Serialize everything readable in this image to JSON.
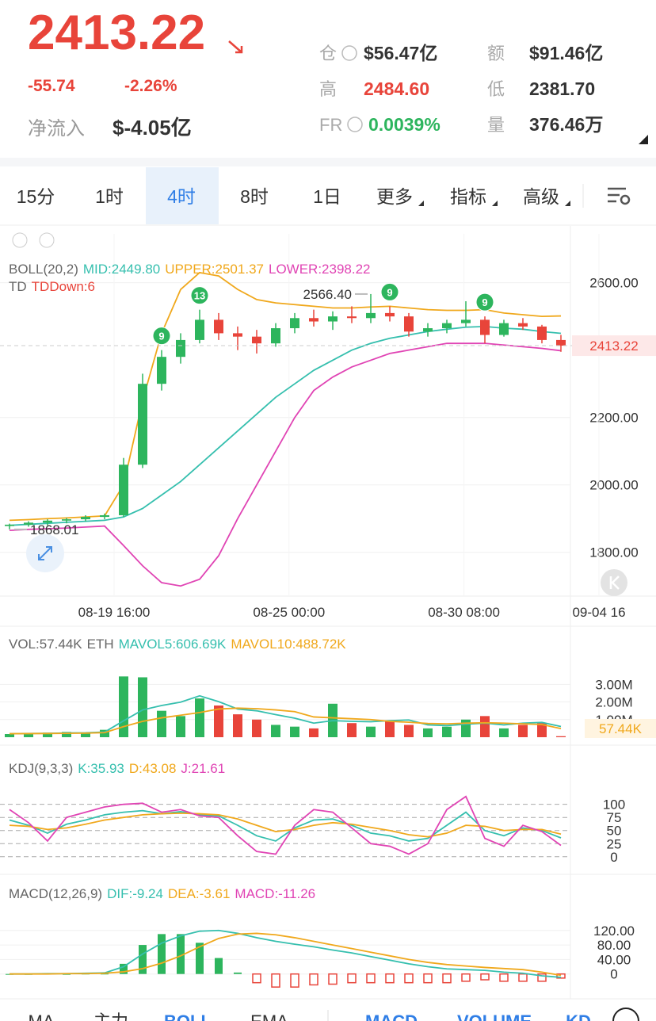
{
  "header": {
    "price": "2413.22",
    "change": "-55.74",
    "change_pct": "-2.26%",
    "net_inflow_label": "净流入",
    "net_inflow": "$-4.05亿",
    "stats": [
      {
        "label": "仓",
        "value": "$56.47亿"
      },
      {
        "label": "额",
        "value": "$91.46亿"
      },
      {
        "label": "高",
        "value": "2484.60"
      },
      {
        "label": "低",
        "value": "2381.70"
      },
      {
        "label": "FR",
        "value": "0.0039%"
      },
      {
        "label": "量",
        "value": "376.46万"
      }
    ]
  },
  "tabs": {
    "items": [
      "15分",
      "1时",
      "4时",
      "8时",
      "1日",
      "更多",
      "指标",
      "高级"
    ],
    "selected": 2
  },
  "chart_data": [
    {
      "type": "candlestick",
      "title": "BOLL(20,2)",
      "td_title": "TD",
      "td_value": "TDDown:6",
      "td_markers": [
        "9",
        "13",
        "9",
        "9"
      ],
      "annotations": [
        "2566.40",
        "1868.01"
      ],
      "open": [
        1878,
        1882,
        1888,
        1894,
        1898,
        1905,
        1910,
        2060,
        2300,
        2380,
        2430,
        2490,
        2450,
        2440,
        2420,
        2465,
        2495,
        2485,
        2500,
        2495,
        2510,
        2500,
        2455,
        2465,
        2480,
        2490,
        2445,
        2480,
        2470,
        2430
      ],
      "high": [
        1885,
        1892,
        1898,
        1902,
        1910,
        1915,
        2080,
        2330,
        2400,
        2450,
        2520,
        2510,
        2470,
        2460,
        2480,
        2510,
        2520,
        2515,
        2530,
        2566.4,
        2530,
        2510,
        2480,
        2490,
        2545,
        2500,
        2490,
        2495,
        2475,
        2445
      ],
      "low": [
        1868.01,
        1876,
        1880,
        1886,
        1892,
        1898,
        1905,
        2050,
        2280,
        2360,
        2420,
        2430,
        2400,
        2390,
        2410,
        2450,
        2470,
        2460,
        2480,
        2480,
        2485,
        2440,
        2440,
        2450,
        2470,
        2420,
        2440,
        2460,
        2420,
        2395
      ],
      "close": [
        1882,
        1888,
        1894,
        1898,
        1905,
        1910,
        2060,
        2300,
        2380,
        2430,
        2490,
        2450,
        2440,
        2420,
        2465,
        2495,
        2485,
        2500,
        2495,
        2510,
        2500,
        2455,
        2465,
        2480,
        2490,
        2445,
        2480,
        2470,
        2430,
        2413.22
      ],
      "series": [
        {
          "name": "MID:2449.80",
          "color": "#35bfae",
          "values": [
            1880,
            1883,
            1886,
            1889,
            1892,
            1895,
            1905,
            1930,
            1970,
            2010,
            2060,
            2110,
            2160,
            2210,
            2260,
            2300,
            2340,
            2370,
            2400,
            2420,
            2435,
            2445,
            2455,
            2462,
            2468,
            2470,
            2465,
            2462,
            2455,
            2449.8
          ]
        },
        {
          "name": "UPPER:2501.37",
          "color": "#f0a81c",
          "values": [
            1895,
            1897,
            1900,
            1902,
            1905,
            1908,
            2000,
            2250,
            2450,
            2580,
            2630,
            2620,
            2580,
            2550,
            2540,
            2535,
            2530,
            2525,
            2525,
            2528,
            2530,
            2525,
            2520,
            2518,
            2518,
            2520,
            2510,
            2505,
            2500,
            2501.37
          ]
        },
        {
          "name": "LOWER:2398.22",
          "color": "#e044b4",
          "values": [
            1865,
            1868,
            1870,
            1872,
            1875,
            1878,
            1820,
            1760,
            1710,
            1700,
            1720,
            1790,
            1900,
            2000,
            2100,
            2200,
            2280,
            2320,
            2350,
            2370,
            2390,
            2400,
            2410,
            2420,
            2420,
            2420,
            2415,
            2410,
            2405,
            2398.22
          ]
        }
      ],
      "up_color": "#2db55d",
      "down_color": "#e8443a",
      "xticks": [
        {
          "value": 5.5,
          "label": "08-19 16:00"
        },
        {
          "value": 14.7,
          "label": "08-25 00:00"
        },
        {
          "value": 23.9,
          "label": "08-30 08:00"
        },
        {
          "value": 31,
          "label": "09-04 16"
        }
      ],
      "ylim": [
        1670,
        2745
      ],
      "yticks": [
        {
          "value": 1800,
          "label": "1800.00"
        },
        {
          "value": 2000,
          "label": "2000.00"
        },
        {
          "value": 2200,
          "label": "2200.00"
        },
        {
          "value": 2600,
          "label": "2600.00"
        }
      ]
    },
    {
      "type": "bar",
      "title": "VOL:57.44K",
      "unit": "ETH",
      "last_value_label": "57.44K",
      "values": [
        180000,
        220000,
        260000,
        300000,
        240000,
        420000,
        3450000,
        3400000,
        1500000,
        1200000,
        2200000,
        1800000,
        1300000,
        1000000,
        700000,
        600000,
        500000,
        1900000,
        800000,
        600000,
        900000,
        700000,
        500000,
        600000,
        1000000,
        1200000,
        500000,
        700000,
        800000,
        57440
      ],
      "series": [
        {
          "name": "MAVOL5:606.69K",
          "color": "#35bfae",
          "values": [
            200000,
            210000,
            220000,
            240000,
            250000,
            290000,
            930000,
            1550000,
            1800000,
            1990000,
            2350000,
            2020000,
            1600000,
            1500000,
            1280000,
            1080000,
            800000,
            940000,
            900000,
            880000,
            940000,
            980000,
            700000,
            660000,
            740000,
            800000,
            700000,
            800000,
            840000,
            606690
          ]
        },
        {
          "name": "MAVOL10:488.72K",
          "color": "#f0a81c",
          "values": [
            200000,
            205000,
            210000,
            220000,
            230000,
            260000,
            600000,
            900000,
            1100000,
            1250000,
            1400000,
            1600000,
            1650000,
            1620000,
            1550000,
            1450000,
            1150000,
            1100000,
            1050000,
            1000000,
            900000,
            850000,
            780000,
            760000,
            800000,
            820000,
            800000,
            760000,
            720000,
            488720
          ]
        }
      ],
      "ylim": [
        0,
        4500000
      ],
      "yticks": [
        {
          "value": 1000000,
          "label": "1.00M"
        },
        {
          "value": 2000000,
          "label": "2.00M"
        },
        {
          "value": 3000000,
          "label": "3.00M"
        }
      ]
    },
    {
      "type": "line",
      "title": "KDJ(9,3,3)",
      "series": [
        {
          "name": "K:35.93",
          "color": "#35bfae",
          "values": [
            70,
            60,
            45,
            62,
            70,
            80,
            85,
            88,
            82,
            86,
            80,
            78,
            60,
            40,
            30,
            55,
            70,
            72,
            60,
            45,
            40,
            30,
            35,
            60,
            85,
            50,
            40,
            55,
            50,
            35.93
          ]
        },
        {
          "name": "D:43.08",
          "color": "#f0a81c",
          "values": [
            60,
            58,
            52,
            55,
            62,
            70,
            75,
            80,
            82,
            83,
            82,
            80,
            72,
            60,
            48,
            52,
            60,
            65,
            62,
            56,
            50,
            42,
            38,
            45,
            60,
            58,
            50,
            52,
            52,
            43.08
          ]
        },
        {
          "name": "J:21.61",
          "color": "#e044b4",
          "values": [
            90,
            65,
            30,
            75,
            85,
            95,
            100,
            102,
            85,
            90,
            78,
            75,
            40,
            10,
            5,
            60,
            90,
            85,
            55,
            25,
            20,
            5,
            25,
            90,
            115,
            35,
            20,
            60,
            48,
            21.61
          ]
        }
      ],
      "ylim": [
        -20,
        160
      ],
      "yticks": [
        0,
        25,
        50,
        75,
        100
      ]
    },
    {
      "type": "macd",
      "title": "MACD(12,26,9)",
      "series": [
        {
          "name": "DIF:-9.24",
          "color": "#35bfae",
          "values": [
            0,
            0,
            1,
            1,
            2,
            3,
            20,
            55,
            85,
            105,
            118,
            120,
            112,
            100,
            90,
            82,
            75,
            66,
            58,
            48,
            38,
            28,
            20,
            14,
            12,
            10,
            5,
            2,
            -5,
            -9.24
          ]
        },
        {
          "name": "DEA:-3.61",
          "color": "#f0a81c",
          "values": [
            0,
            0,
            0,
            1,
            1,
            2,
            6,
            15,
            30,
            50,
            75,
            98,
            110,
            112,
            108,
            100,
            90,
            80,
            70,
            60,
            50,
            40,
            32,
            26,
            22,
            18,
            15,
            12,
            5,
            -3.61
          ]
        }
      ],
      "histogram": {
        "name": "MACD:-11.26",
        "color": "#e044b4",
        "values": [
          0,
          0,
          1,
          0,
          1,
          1,
          28,
          80,
          110,
          110,
          86,
          44,
          4,
          -24,
          -36,
          -36,
          -30,
          -28,
          -24,
          -24,
          -24,
          -24,
          -24,
          -24,
          -20,
          -16,
          -20,
          -20,
          -20,
          -11.26
        ]
      },
      "ylim": [
        -40,
        220
      ],
      "yticks": [
        0,
        {
          "value": 40,
          "label": "40.00"
        },
        {
          "value": 80,
          "label": "80.00"
        },
        {
          "value": 120,
          "label": "120.00"
        }
      ]
    }
  ],
  "bottom_tabs": {
    "items": [
      "MA",
      "主力",
      "BOLL",
      "EMA",
      "MACD",
      "VOLUME",
      "KD"
    ],
    "active": [
      2,
      4,
      5,
      6
    ]
  }
}
